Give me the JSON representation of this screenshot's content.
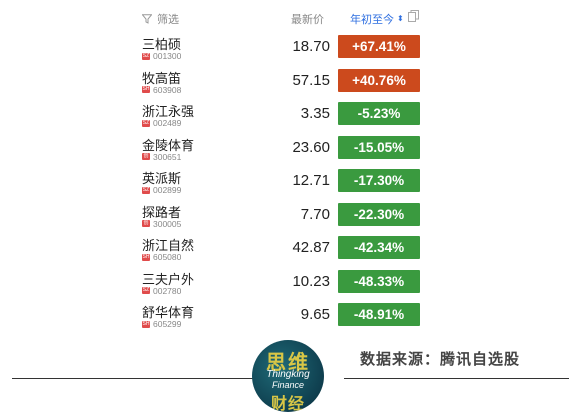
{
  "header": {
    "filter_label": "筛选",
    "price_label": "最新价",
    "ytd_label": "年初至今"
  },
  "colors": {
    "up": "#cc4a1d",
    "down": "#3a9a3f",
    "sz": "#e04b4b",
    "sh": "#e04b4b"
  },
  "rows": [
    {
      "name": "三柏硕",
      "market": "SZ",
      "code": "001300",
      "price": "18.70",
      "change": "+67.41%",
      "dir": "up"
    },
    {
      "name": "牧高笛",
      "market": "SH",
      "code": "603908",
      "price": "57.15",
      "change": "+40.76%",
      "dir": "up"
    },
    {
      "name": "浙江永强",
      "market": "SZ",
      "code": "002489",
      "price": "3.35",
      "change": "-5.23%",
      "dir": "down"
    },
    {
      "name": "金陵体育",
      "market": "创",
      "code": "300651",
      "price": "23.60",
      "change": "-15.05%",
      "dir": "down"
    },
    {
      "name": "英派斯",
      "market": "SZ",
      "code": "002899",
      "price": "12.71",
      "change": "-17.30%",
      "dir": "down"
    },
    {
      "name": "探路者",
      "market": "创",
      "code": "300005",
      "price": "7.70",
      "change": "-22.30%",
      "dir": "down"
    },
    {
      "name": "浙江自然",
      "market": "SH",
      "code": "605080",
      "price": "42.87",
      "change": "-42.34%",
      "dir": "down"
    },
    {
      "name": "三夫户外",
      "market": "SZ",
      "code": "002780",
      "price": "10.23",
      "change": "-48.33%",
      "dir": "down"
    },
    {
      "name": "舒华体育",
      "market": "SH",
      "code": "605299",
      "price": "9.65",
      "change": "-48.91%",
      "dir": "down"
    }
  ],
  "logo": {
    "top": "思维",
    "line1": "Thingking",
    "line2": "Finance",
    "bottom": "财经"
  },
  "source": "数据来源：腾讯自选股"
}
